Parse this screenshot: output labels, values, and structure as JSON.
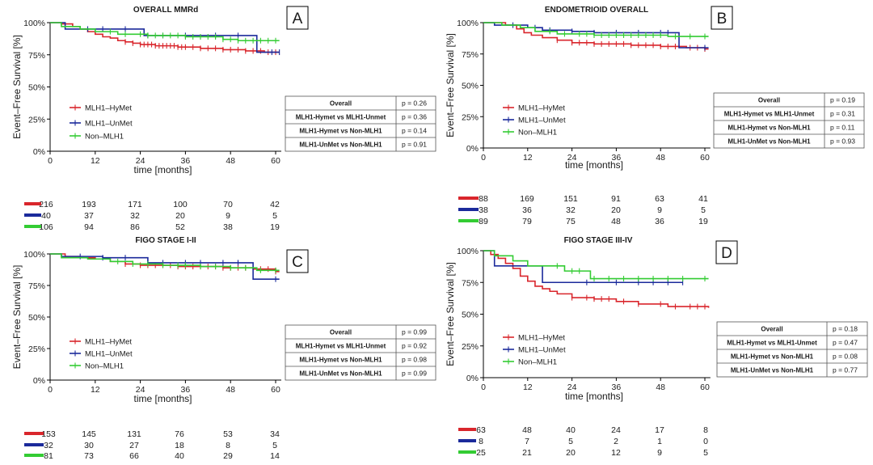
{
  "chart_data": [
    {
      "panel_label": "A",
      "type": "line",
      "step": true,
      "title": "OVERALL MMRd",
      "xlabel": "time [months]",
      "ylabel": "Event–Free Survival [%]",
      "xlim": [
        0,
        61
      ],
      "ylim": [
        0,
        100
      ],
      "xticks": [
        "0",
        "12",
        "24",
        "36",
        "48",
        "60"
      ],
      "yticks": [
        "0%",
        "25%",
        "50%",
        "75%",
        "100%"
      ],
      "grid": false,
      "legend_position": "lower-left",
      "series": [
        {
          "name": "MLH1–HyMet",
          "color": "#d9262c",
          "points": [
            [
              0,
              100
            ],
            [
              3,
              99
            ],
            [
              6,
              97
            ],
            [
              8,
              95
            ],
            [
              10,
              93
            ],
            [
              12,
              91
            ],
            [
              14,
              89
            ],
            [
              16,
              88
            ],
            [
              18,
              86
            ],
            [
              20,
              85
            ],
            [
              22,
              84
            ],
            [
              24,
              83
            ],
            [
              28,
              82
            ],
            [
              34,
              81
            ],
            [
              40,
              80
            ],
            [
              46,
              79
            ],
            [
              52,
              78
            ],
            [
              57,
              77
            ],
            [
              61,
              77
            ]
          ],
          "censored": [
            20,
            22,
            24,
            25,
            26,
            27,
            28,
            29,
            30,
            31,
            32,
            33,
            34,
            35,
            36,
            38,
            40,
            42,
            44,
            46,
            48,
            50,
            52,
            54,
            56,
            58,
            60
          ]
        },
        {
          "name": "MLH1–UnMet",
          "color": "#1b2a9b",
          "points": [
            [
              0,
              100
            ],
            [
              4,
              95
            ],
            [
              25,
              90
            ],
            [
              55,
              77
            ],
            [
              61,
              77
            ]
          ],
          "censored": [
            10,
            14,
            20,
            26,
            30,
            36,
            44,
            50,
            59,
            61
          ]
        },
        {
          "name": "Non–MLH1",
          "color": "#33cc33",
          "points": [
            [
              0,
              100
            ],
            [
              3,
              97
            ],
            [
              8,
              95
            ],
            [
              12,
              93
            ],
            [
              18,
              91
            ],
            [
              26,
              90
            ],
            [
              36,
              89
            ],
            [
              46,
              87
            ],
            [
              50,
              86
            ],
            [
              61,
              86
            ]
          ],
          "censored": [
            16,
            20,
            24,
            26,
            28,
            30,
            32,
            34,
            36,
            38,
            40,
            42,
            44,
            46,
            48,
            50,
            52,
            54,
            56,
            58,
            60
          ]
        }
      ],
      "pvalue_table": [
        [
          "Overall",
          "p = 0.26"
        ],
        [
          "MLH1-Hymet vs MLH1-Unmet",
          "p = 0.36"
        ],
        [
          "MLH1-Hymet vs Non-MLH1",
          "p = 0.14"
        ],
        [
          "MLH1-UnMet vs Non-MLH1",
          "p = 0.91"
        ]
      ],
      "risk_table": [
        [
          "216",
          "193",
          "171",
          "100",
          "70",
          "42"
        ],
        [
          "40",
          "37",
          "32",
          "20",
          "9",
          "5"
        ],
        [
          "106",
          "94",
          "86",
          "52",
          "38",
          "19"
        ]
      ]
    },
    {
      "panel_label": "B",
      "type": "line",
      "step": true,
      "title": "ENDOMETRIOID OVERALL",
      "xlabel": "time [months]",
      "ylabel": "Event–Free Survival [%]",
      "xlim": [
        0,
        61
      ],
      "ylim": [
        0,
        100
      ],
      "xticks": [
        "0",
        "12",
        "24",
        "36",
        "48",
        "60"
      ],
      "yticks": [
        "0%",
        "25%",
        "50%",
        "75%",
        "100%"
      ],
      "grid": false,
      "legend_position": "lower-left",
      "series": [
        {
          "name": "MLH1–HyMet",
          "color": "#d9262c",
          "points": [
            [
              0,
              100
            ],
            [
              6,
              98
            ],
            [
              9,
              95
            ],
            [
              11,
              92
            ],
            [
              13,
              90
            ],
            [
              16,
              88
            ],
            [
              20,
              86
            ],
            [
              24,
              84
            ],
            [
              30,
              83
            ],
            [
              40,
              82
            ],
            [
              48,
              81
            ],
            [
              55,
              80
            ],
            [
              60,
              79
            ],
            [
              61,
              79
            ]
          ],
          "censored": [
            20,
            24,
            26,
            28,
            30,
            32,
            34,
            36,
            38,
            40,
            42,
            44,
            46,
            48,
            50,
            52,
            56,
            58,
            60
          ]
        },
        {
          "name": "MLH1–UnMet",
          "color": "#1b2a9b",
          "points": [
            [
              0,
              100
            ],
            [
              3,
              98
            ],
            [
              12,
              96
            ],
            [
              16,
              94
            ],
            [
              24,
              93
            ],
            [
              30,
              92
            ],
            [
              53,
              80
            ],
            [
              61,
              80
            ]
          ],
          "censored": [
            8,
            14,
            18,
            24,
            30,
            36,
            42,
            48,
            50,
            60
          ]
        },
        {
          "name": "Non–MLH1",
          "color": "#33cc33",
          "points": [
            [
              0,
              100
            ],
            [
              5,
              98
            ],
            [
              10,
              96
            ],
            [
              14,
              93
            ],
            [
              20,
              91
            ],
            [
              30,
              90
            ],
            [
              50,
              89
            ],
            [
              61,
              89
            ]
          ],
          "censored": [
            18,
            22,
            26,
            28,
            30,
            32,
            34,
            36,
            38,
            40,
            42,
            44,
            46,
            48,
            52,
            56,
            60
          ]
        }
      ],
      "pvalue_table": [
        [
          "Overall",
          "p = 0.19"
        ],
        [
          "MLH1-Hymet vs MLH1-Unmet",
          "p = 0.31"
        ],
        [
          "MLH1-Hymet vs Non-MLH1",
          "p = 0.11"
        ],
        [
          "MLH1-UnMet vs Non-MLH1",
          "p = 0.93"
        ]
      ],
      "risk_table": [
        [
          "88",
          "169",
          "151",
          "91",
          "63",
          "41"
        ],
        [
          "38",
          "36",
          "32",
          "20",
          "9",
          "5"
        ],
        [
          "89",
          "79",
          "75",
          "48",
          "36",
          "19"
        ]
      ]
    },
    {
      "panel_label": "C",
      "type": "line",
      "step": true,
      "title": "FIGO STAGE I-II",
      "xlabel": "time [months]",
      "ylabel": "Event–Free Survival [%]",
      "xlim": [
        0,
        61
      ],
      "ylim": [
        0,
        100
      ],
      "xticks": [
        "0",
        "12",
        "24",
        "36",
        "48",
        "60"
      ],
      "yticks": [
        "0%",
        "25%",
        "50%",
        "75%",
        "100%"
      ],
      "grid": false,
      "legend_position": "lower-left",
      "series": [
        {
          "name": "MLH1–HyMet",
          "color": "#d9262c",
          "points": [
            [
              0,
              100
            ],
            [
              4,
              98
            ],
            [
              8,
              97
            ],
            [
              12,
              96
            ],
            [
              16,
              94
            ],
            [
              20,
              92
            ],
            [
              24,
              91
            ],
            [
              34,
              90
            ],
            [
              46,
              89
            ],
            [
              54,
              88
            ],
            [
              60,
              86
            ],
            [
              61,
              86
            ]
          ],
          "censored": [
            20,
            24,
            26,
            28,
            30,
            32,
            34,
            36,
            38,
            40,
            42,
            44,
            46,
            48,
            50,
            52,
            56,
            58,
            60
          ]
        },
        {
          "name": "MLH1–UnMet",
          "color": "#1b2a9b",
          "points": [
            [
              0,
              100
            ],
            [
              3,
              98
            ],
            [
              14,
              97
            ],
            [
              26,
              93
            ],
            [
              54,
              80
            ],
            [
              61,
              80
            ]
          ],
          "censored": [
            8,
            14,
            20,
            30,
            36,
            40,
            46,
            50,
            60
          ]
        },
        {
          "name": "Non–MLH1",
          "color": "#33cc33",
          "points": [
            [
              0,
              100
            ],
            [
              3,
              97
            ],
            [
              10,
              96
            ],
            [
              16,
              94
            ],
            [
              22,
              92
            ],
            [
              30,
              91
            ],
            [
              40,
              90
            ],
            [
              48,
              89
            ],
            [
              55,
              87
            ],
            [
              61,
              87
            ]
          ],
          "censored": [
            18,
            22,
            26,
            30,
            34,
            36,
            40,
            44,
            48,
            52,
            56,
            60
          ]
        }
      ],
      "pvalue_table": [
        [
          "Overall",
          "p = 0.99"
        ],
        [
          "MLH1-Hymet vs MLH1-Unmet",
          "p = 0.92"
        ],
        [
          "MLH1-Hymet vs Non-MLH1",
          "p = 0.98"
        ],
        [
          "MLH1-UnMet vs Non-MLH1",
          "p = 0.99"
        ]
      ],
      "risk_table": [
        [
          "153",
          "145",
          "131",
          "76",
          "53",
          "34"
        ],
        [
          "32",
          "30",
          "27",
          "18",
          "8",
          "5"
        ],
        [
          "81",
          "73",
          "66",
          "40",
          "29",
          "14"
        ]
      ]
    },
    {
      "panel_label": "D",
      "type": "line",
      "step": true,
      "title": "FIGO STAGE III-IV",
      "xlabel": "time [months]",
      "ylabel": "Event–Free Survival [%]",
      "xlim": [
        0,
        61
      ],
      "ylim": [
        0,
        100
      ],
      "xticks": [
        "0",
        "12",
        "24",
        "36",
        "48",
        "60"
      ],
      "yticks": [
        "0%",
        "25%",
        "50%",
        "75%",
        "100%"
      ],
      "grid": false,
      "legend_position": "lower-left",
      "series": [
        {
          "name": "MLH1–HyMet",
          "color": "#d9262c",
          "points": [
            [
              0,
              100
            ],
            [
              2,
              97
            ],
            [
              4,
              94
            ],
            [
              6,
              90
            ],
            [
              8,
              86
            ],
            [
              10,
              80
            ],
            [
              12,
              76
            ],
            [
              14,
              72
            ],
            [
              16,
              70
            ],
            [
              18,
              68
            ],
            [
              20,
              66
            ],
            [
              24,
              63
            ],
            [
              30,
              62
            ],
            [
              36,
              60
            ],
            [
              42,
              58
            ],
            [
              50,
              56
            ],
            [
              61,
              55
            ]
          ],
          "censored": [
            24,
            28,
            30,
            32,
            34,
            38,
            42,
            48,
            52,
            56,
            58,
            60
          ]
        },
        {
          "name": "MLH1–UnMet",
          "color": "#1b2a9b",
          "points": [
            [
              0,
              100
            ],
            [
              3,
              88
            ],
            [
              16,
              75
            ],
            [
              54,
              75
            ]
          ],
          "censored": [
            28,
            36,
            42,
            46,
            50,
            54
          ]
        },
        {
          "name": "Non–MLH1",
          "color": "#33cc33",
          "points": [
            [
              0,
              100
            ],
            [
              3,
              96
            ],
            [
              8,
              92
            ],
            [
              12,
              88
            ],
            [
              22,
              84
            ],
            [
              29,
              78
            ],
            [
              61,
              78
            ]
          ],
          "censored": [
            20,
            24,
            26,
            30,
            34,
            38,
            42,
            46,
            50,
            54,
            60
          ]
        }
      ],
      "pvalue_table": [
        [
          "Overall",
          "p = 0.18"
        ],
        [
          "MLH1-Hymet vs MLH1-Unmet",
          "p = 0.47"
        ],
        [
          "MLH1-Hymet vs Non-MLH1",
          "p = 0.08"
        ],
        [
          "MLH1-UnMet vs Non-MLH1",
          "p = 0.77"
        ]
      ],
      "risk_table": [
        [
          "63",
          "48",
          "40",
          "24",
          "17",
          "8"
        ],
        [
          "8",
          "7",
          "5",
          "2",
          "1",
          "0"
        ],
        [
          "25",
          "21",
          "20",
          "12",
          "9",
          "5"
        ]
      ]
    }
  ]
}
